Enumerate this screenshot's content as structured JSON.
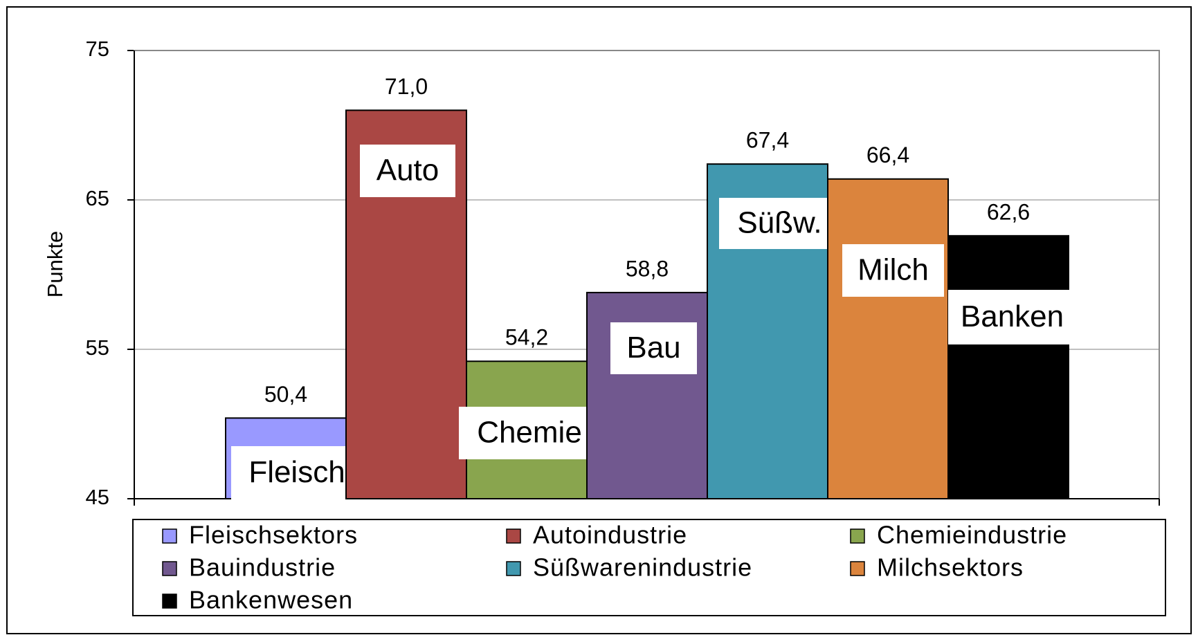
{
  "chart_data": {
    "type": "bar",
    "ylabel": "Punkte",
    "ylim": [
      45,
      75
    ],
    "yticks": [
      45,
      55,
      65,
      75
    ],
    "grid": true,
    "series": [
      {
        "name": "Fleischsektors",
        "color": "#9999ff",
        "values": [
          50.4
        ],
        "value_labels": [
          "50,4"
        ],
        "bar_label": "Fleisch"
      },
      {
        "name": "Autoindustrie",
        "color": "#aa4744",
        "values": [
          71.0
        ],
        "value_labels": [
          "71,0"
        ],
        "bar_label": "Auto"
      },
      {
        "name": "Chemieindustrie",
        "color": "#89a54e",
        "values": [
          54.2
        ],
        "value_labels": [
          "54,2"
        ],
        "bar_label": "Chemie"
      },
      {
        "name": "Bauindustrie",
        "color": "#71588f",
        "values": [
          58.8
        ],
        "value_labels": [
          "58,8"
        ],
        "bar_label": "Bau"
      },
      {
        "name": "Süßwarenindustrie",
        "color": "#4198af",
        "values": [
          67.4
        ],
        "value_labels": [
          "67,4"
        ],
        "bar_label": "Süßw."
      },
      {
        "name": "Milchsektors",
        "color": "#db843d",
        "values": [
          66.4
        ],
        "value_labels": [
          "66,4"
        ],
        "bar_label": "Milch"
      },
      {
        "name": "Bankenwesen",
        "color": "#000000",
        "values": [
          62.6
        ],
        "value_labels": [
          "62,6"
        ],
        "bar_label": "Banken"
      }
    ]
  }
}
